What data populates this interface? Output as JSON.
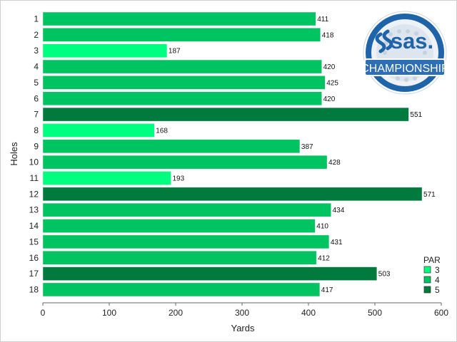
{
  "chart_data": {
    "type": "bar",
    "orientation": "horizontal",
    "xlabel": "Yards",
    "ylabel": "Holes",
    "xlim": [
      0,
      600
    ],
    "xticks": [
      0,
      100,
      200,
      300,
      400,
      500,
      600
    ],
    "categories": [
      "1",
      "2",
      "3",
      "4",
      "5",
      "6",
      "7",
      "8",
      "9",
      "10",
      "11",
      "12",
      "13",
      "14",
      "15",
      "16",
      "17",
      "18"
    ],
    "values": [
      411,
      418,
      187,
      420,
      425,
      420,
      551,
      168,
      387,
      428,
      193,
      571,
      434,
      410,
      431,
      412,
      503,
      417
    ],
    "par": [
      4,
      4,
      3,
      4,
      4,
      4,
      5,
      3,
      4,
      4,
      3,
      5,
      4,
      4,
      4,
      4,
      5,
      4
    ],
    "legend": {
      "title": "PAR",
      "position": "bottom-right",
      "entries": [
        {
          "label": "3",
          "color": "#00ff80"
        },
        {
          "label": "4",
          "color": "#00c462"
        },
        {
          "label": "5",
          "color": "#007a3d"
        }
      ]
    },
    "grid": false
  },
  "logo": {
    "brand": "sas.",
    "text": "CHAMPIONSHIP",
    "ring_color": "#1f63a8",
    "banner_color": "#2d6eb4"
  }
}
